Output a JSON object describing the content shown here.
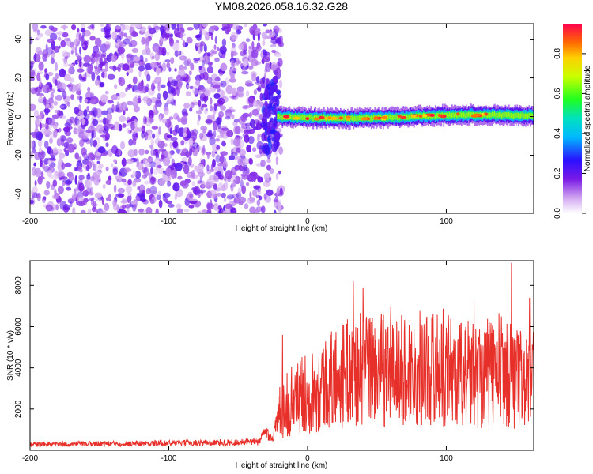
{
  "title": "YM08.2026.058.16.32.G28",
  "colors": {
    "snr_line": "#e8302a",
    "axis": "#000000",
    "background": "#ffffff"
  },
  "chart_data": [
    {
      "type": "heatmap",
      "panel": "spectrogram",
      "title": "YM08.2026.058.16.32.G28",
      "xlabel": "Height of straight line (km)",
      "ylabel": "Frequency (Hz)",
      "xlim": [
        -200,
        163
      ],
      "ylim": [
        -50,
        48
      ],
      "xticks": [
        "-200",
        "-100",
        "0",
        "100"
      ],
      "yticks": [
        "-40",
        "-20",
        "0",
        "20",
        "40"
      ],
      "noise_region_x": [
        -200,
        -22
      ],
      "signal_band": {
        "x_start": -22,
        "x_end": 163,
        "center_hz": 0,
        "half_width_hz": 4,
        "peak_amplitude": 0.95
      },
      "colorbar": {
        "label": "Normalized spectral amplitude",
        "range": [
          0,
          0.95
        ],
        "ticks": [
          "0.0",
          "0.2",
          "0.4",
          "0.6",
          "0.8"
        ]
      }
    },
    {
      "type": "line",
      "panel": "snr",
      "xlabel": "Height of straight line (km)",
      "ylabel": "SNR (10 * v/v)",
      "xlim": [
        -200,
        163
      ],
      "ylim": [
        0,
        9200
      ],
      "xticks": [
        "-200",
        "-100",
        "0",
        "100"
      ],
      "yticks": [
        "2000",
        "4000",
        "6000",
        "8000"
      ],
      "series": [
        {
          "name": "SNR",
          "x": [
            -200,
            -175,
            -150,
            -125,
            -100,
            -75,
            -50,
            -35,
            -30,
            -25,
            -20,
            -15,
            -10,
            -5,
            0,
            10,
            20,
            30,
            40,
            50,
            60,
            70,
            80,
            90,
            100,
            110,
            120,
            130,
            140,
            150,
            160,
            163
          ],
          "y": [
            300,
            320,
            350,
            360,
            380,
            400,
            420,
            450,
            1000,
            600,
            2200,
            2500,
            2800,
            3000,
            3200,
            3600,
            4000,
            4300,
            4500,
            4500,
            4400,
            4400,
            4500,
            4600,
            4600,
            4300,
            4200,
            4300,
            4500,
            4100,
            3800,
            3900
          ],
          "peaks": [
            [
              -18,
              5600
            ],
            [
              33,
              8200
            ],
            [
              40,
              7900
            ],
            [
              60,
              7000
            ],
            [
              120,
              7300
            ],
            [
              147,
              9100
            ],
            [
              160,
              7400
            ]
          ]
        }
      ]
    }
  ]
}
